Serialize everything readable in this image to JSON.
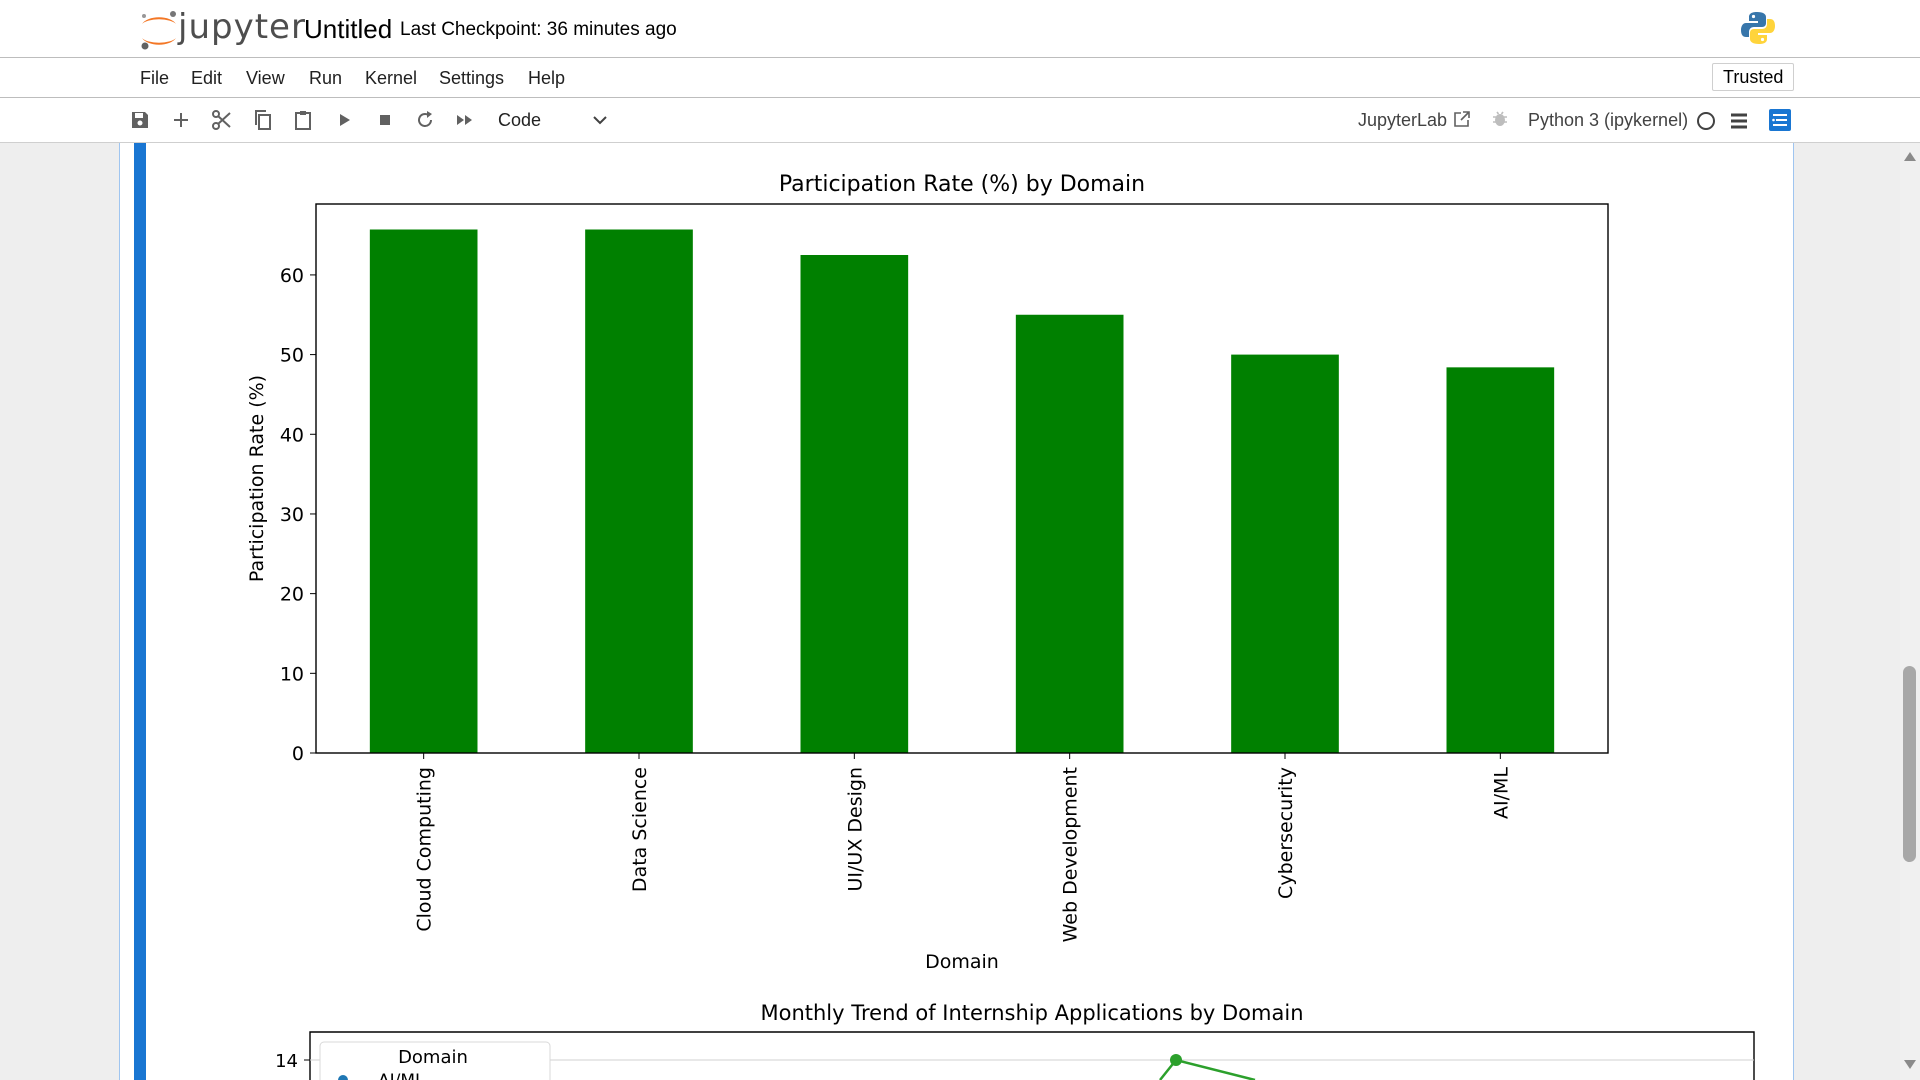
{
  "header": {
    "logo_text": "jupyter",
    "notebook_title": "Untitled",
    "checkpoint": "Last Checkpoint: 36 minutes ago"
  },
  "menu": {
    "items": [
      "File",
      "Edit",
      "View",
      "Run",
      "Kernel",
      "Settings",
      "Help"
    ],
    "trusted": "Trusted"
  },
  "toolbar": {
    "icons": [
      "save-icon",
      "add-icon",
      "cut-icon",
      "copy-icon",
      "paste-icon",
      "run-icon",
      "stop-icon",
      "restart-icon",
      "fast-forward-icon"
    ],
    "cell_type": "Code",
    "jupyterlab_link": "JupyterLab",
    "kernel_name": "Python 3 (ipykernel)"
  },
  "chart_data": [
    {
      "type": "bar",
      "title": "Participation Rate (%) by Domain",
      "xlabel": "Domain",
      "ylabel": "Participation Rate (%)",
      "categories": [
        "Cloud Computing",
        "Data Science",
        "UI/UX Design",
        "Web Development",
        "Cybersecurity",
        "AI/ML"
      ],
      "values": [
        65.7,
        65.7,
        62.5,
        55.0,
        50.0,
        48.4
      ],
      "ylim": [
        0,
        68.9
      ],
      "yticks": [
        0,
        10,
        20,
        30,
        40,
        50,
        60
      ],
      "bar_color": "#008000",
      "grid": false
    },
    {
      "type": "line",
      "title": "Monthly Trend of Internship Applications by Domain",
      "legend_title": "Domain",
      "legend_first_entry": "AI/ML",
      "visible_ytick": 14,
      "grid": true,
      "legend_placement": "top-left",
      "series_color": "#2ca02c"
    }
  ]
}
